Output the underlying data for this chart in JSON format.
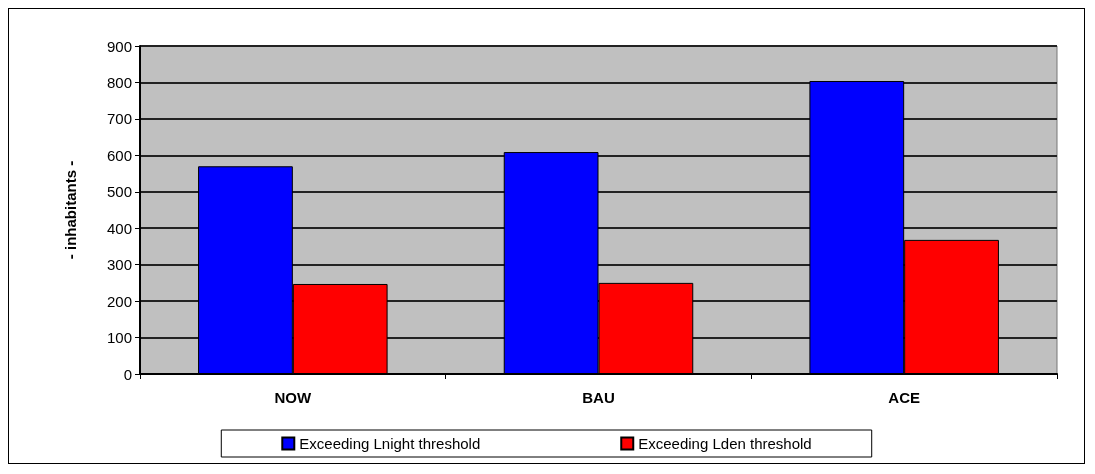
{
  "chart_data": {
    "type": "bar",
    "ylabel": "- inhabitants -",
    "categories": [
      "NOW",
      "BAU",
      "ACE"
    ],
    "series": [
      {
        "name": "Exceeding Lnight threshold",
        "color": "#0000ff",
        "values": [
          570,
          609,
          804
        ]
      },
      {
        "name": "Exceeding Lden threshold",
        "color": "#ff0000",
        "values": [
          247,
          250,
          368
        ]
      }
    ],
    "ylim": [
      0,
      900
    ],
    "yticks": [
      0,
      100,
      200,
      300,
      400,
      500,
      600,
      700,
      800,
      900
    ],
    "grid": "y",
    "legend": "bottom"
  }
}
